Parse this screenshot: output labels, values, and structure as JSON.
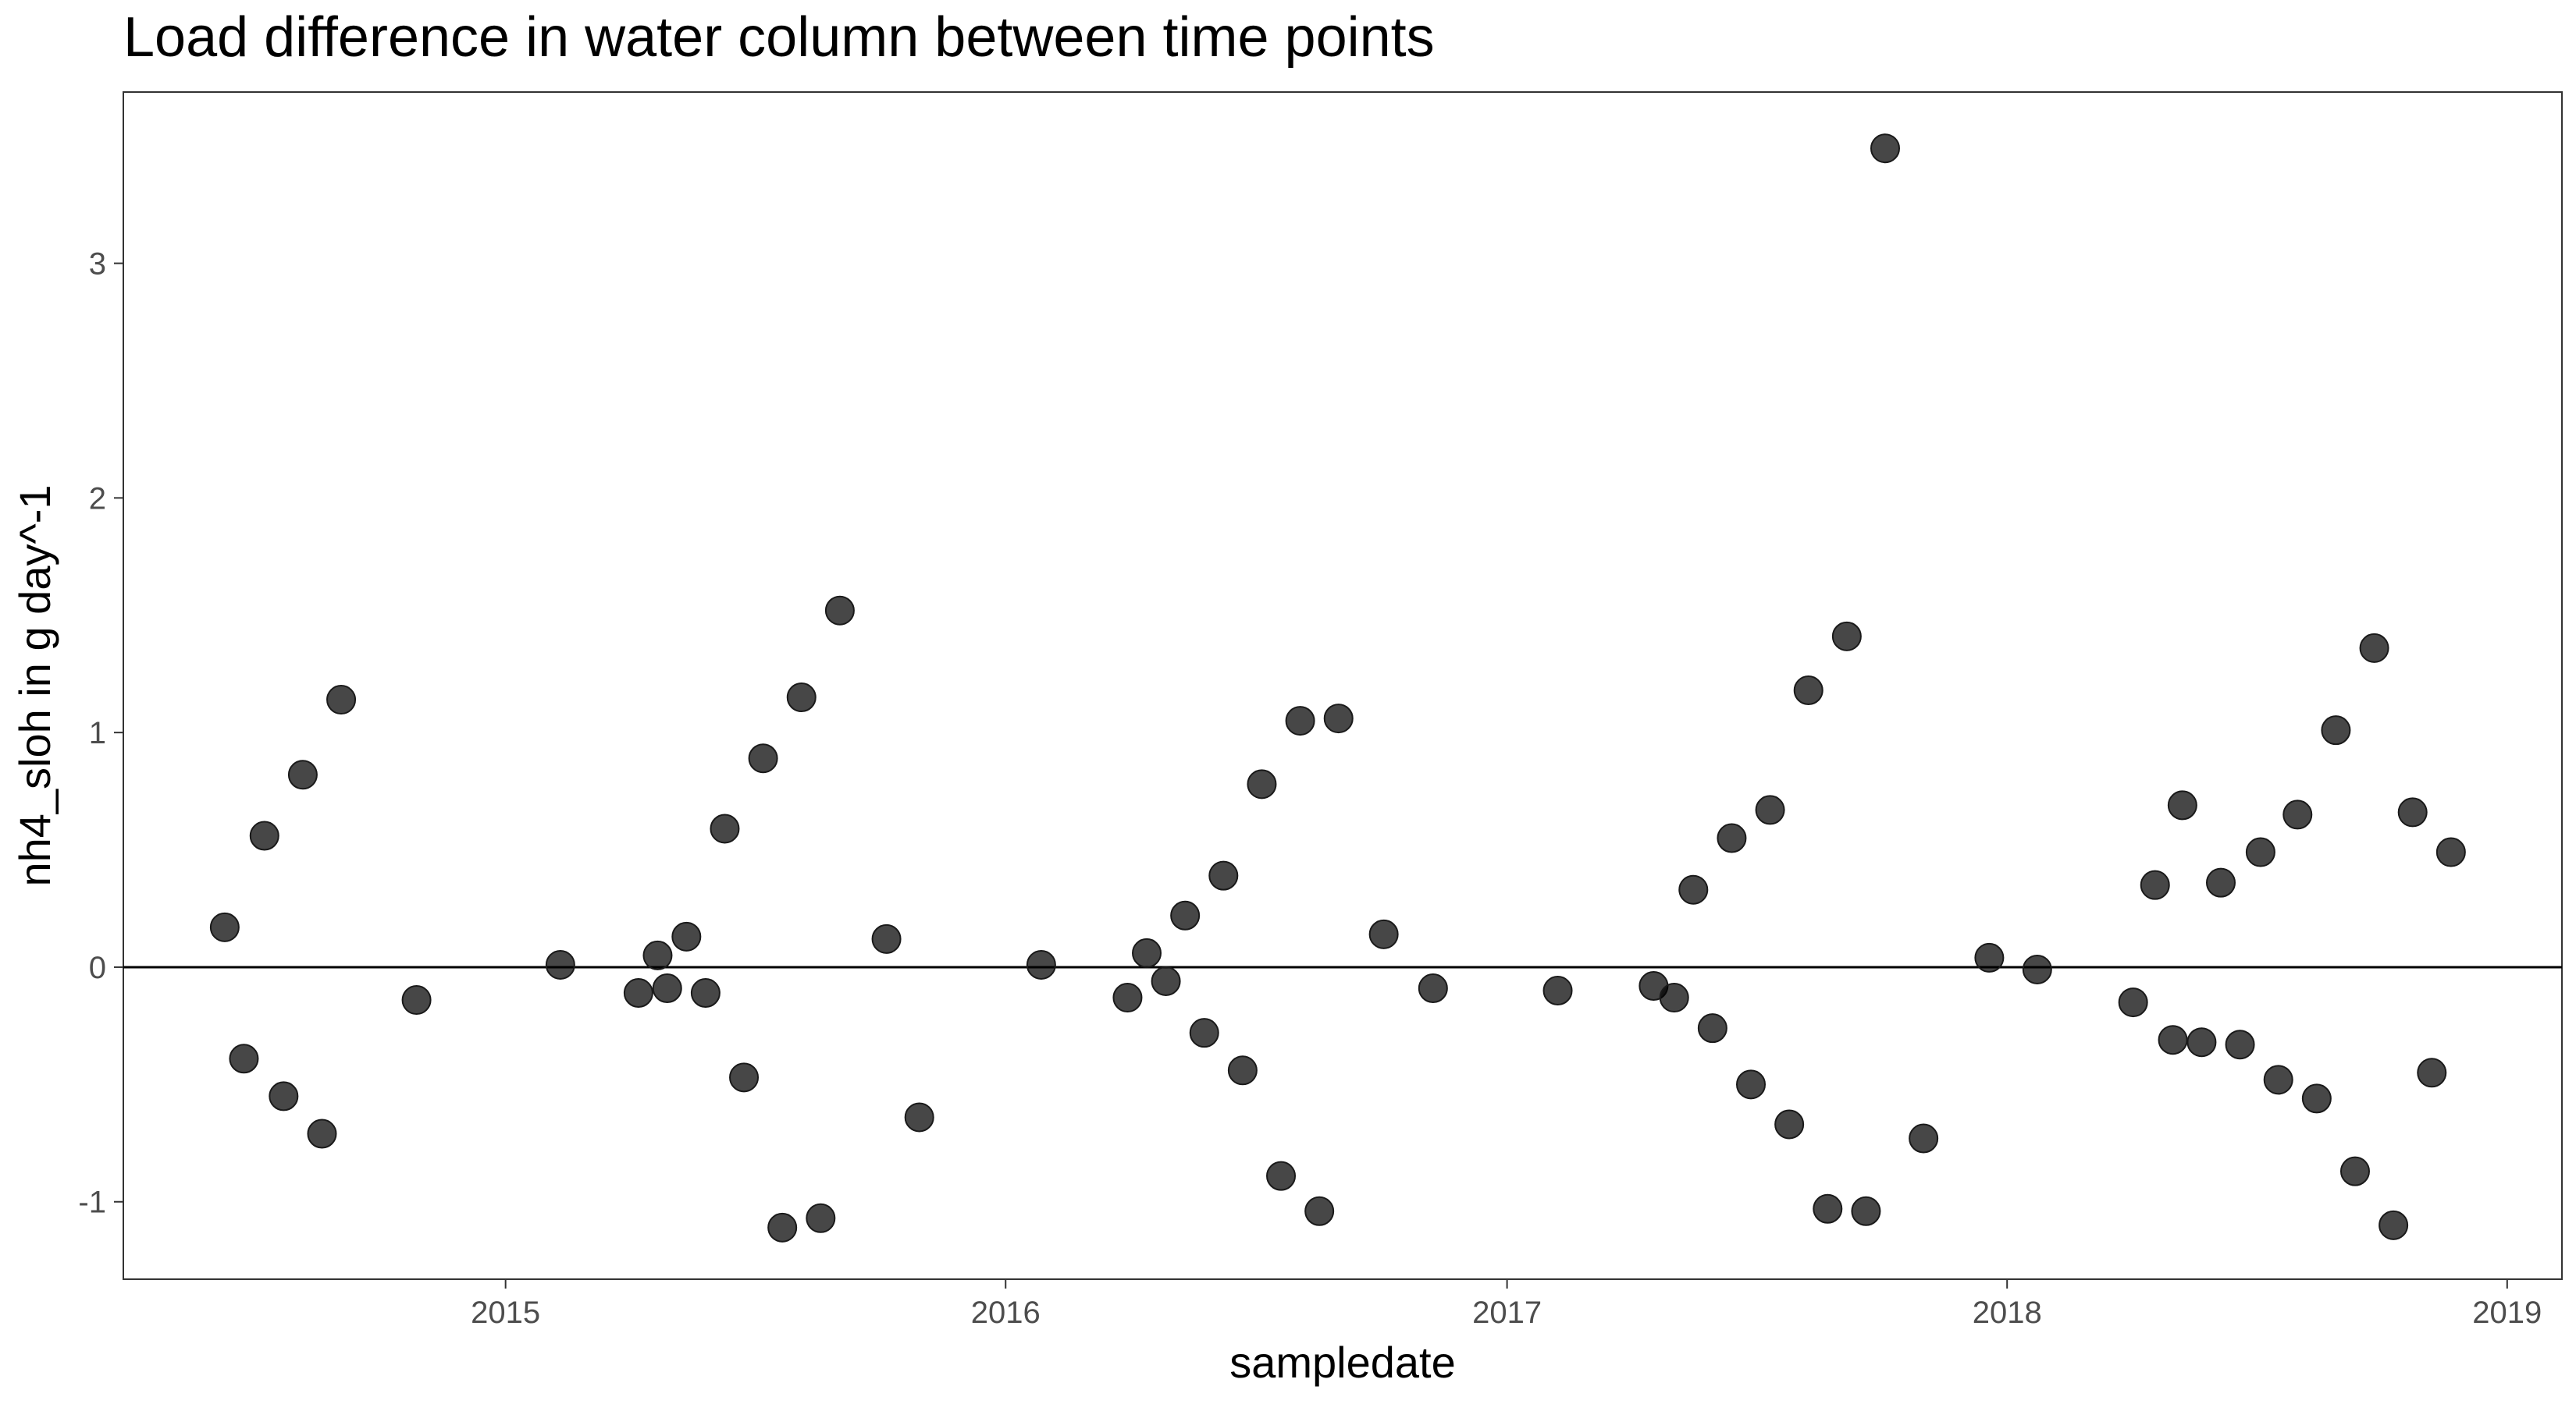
{
  "chart_data": {
    "type": "scatter",
    "title": "Load difference in water column between time points",
    "xlabel": "sampledate",
    "ylabel": "nh4_sloh in g day^-1",
    "x_type": "date",
    "xlim": [
      "2014-03-28",
      "2019-02-10"
    ],
    "ylim": [
      -1.33,
      3.73
    ],
    "x_ticks": [
      {
        "value": "2015-01-01",
        "label": "2015"
      },
      {
        "value": "2016-01-01",
        "label": "2016"
      },
      {
        "value": "2017-01-01",
        "label": "2017"
      },
      {
        "value": "2018-01-01",
        "label": "2018"
      },
      {
        "value": "2019-01-01",
        "label": "2019"
      }
    ],
    "y_ticks": [
      {
        "value": -1,
        "label": "-1"
      },
      {
        "value": 0,
        "label": "0"
      },
      {
        "value": 1,
        "label": "1"
      },
      {
        "value": 2,
        "label": "2"
      },
      {
        "value": 3,
        "label": "3"
      }
    ],
    "reference_line_y": 0,
    "grid": false,
    "point_color": "#000000",
    "point_opacity": 0.72,
    "points": [
      {
        "x": "2014-06-10",
        "y": 0.17
      },
      {
        "x": "2014-06-24",
        "y": -0.39
      },
      {
        "x": "2014-07-09",
        "y": 0.56
      },
      {
        "x": "2014-07-23",
        "y": -0.55
      },
      {
        "x": "2014-08-06",
        "y": 0.82
      },
      {
        "x": "2014-08-20",
        "y": -0.71
      },
      {
        "x": "2014-09-03",
        "y": 1.14
      },
      {
        "x": "2014-10-28",
        "y": -0.14
      },
      {
        "x": "2015-02-10",
        "y": 0.01
      },
      {
        "x": "2015-04-08",
        "y": -0.11
      },
      {
        "x": "2015-04-22",
        "y": 0.05
      },
      {
        "x": "2015-04-29",
        "y": -0.09
      },
      {
        "x": "2015-05-13",
        "y": 0.13
      },
      {
        "x": "2015-05-27",
        "y": -0.11
      },
      {
        "x": "2015-06-10",
        "y": 0.59
      },
      {
        "x": "2015-06-24",
        "y": -0.47
      },
      {
        "x": "2015-07-08",
        "y": 0.89
      },
      {
        "x": "2015-07-22",
        "y": -1.11
      },
      {
        "x": "2015-08-05",
        "y": 1.15
      },
      {
        "x": "2015-08-19",
        "y": -1.07
      },
      {
        "x": "2015-09-02",
        "y": 1.52
      },
      {
        "x": "2015-10-06",
        "y": 0.12
      },
      {
        "x": "2015-10-30",
        "y": -0.64
      },
      {
        "x": "2016-01-27",
        "y": 0.01
      },
      {
        "x": "2016-03-30",
        "y": -0.13
      },
      {
        "x": "2016-04-13",
        "y": 0.06
      },
      {
        "x": "2016-04-27",
        "y": -0.06
      },
      {
        "x": "2016-05-11",
        "y": 0.22
      },
      {
        "x": "2016-05-25",
        "y": -0.28
      },
      {
        "x": "2016-06-08",
        "y": 0.39
      },
      {
        "x": "2016-06-22",
        "y": -0.44
      },
      {
        "x": "2016-07-06",
        "y": 0.78
      },
      {
        "x": "2016-07-20",
        "y": -0.89
      },
      {
        "x": "2016-08-03",
        "y": 1.05
      },
      {
        "x": "2016-08-17",
        "y": -1.04
      },
      {
        "x": "2016-08-31",
        "y": 1.06
      },
      {
        "x": "2016-10-03",
        "y": 0.14
      },
      {
        "x": "2016-11-08",
        "y": -0.09
      },
      {
        "x": "2017-02-07",
        "y": -0.1
      },
      {
        "x": "2017-04-18",
        "y": -0.08
      },
      {
        "x": "2017-05-03",
        "y": -0.13
      },
      {
        "x": "2017-05-17",
        "y": 0.33
      },
      {
        "x": "2017-05-31",
        "y": -0.26
      },
      {
        "x": "2017-06-14",
        "y": 0.55
      },
      {
        "x": "2017-06-28",
        "y": -0.5
      },
      {
        "x": "2017-07-12",
        "y": 0.67
      },
      {
        "x": "2017-07-26",
        "y": -0.67
      },
      {
        "x": "2017-08-09",
        "y": 1.18
      },
      {
        "x": "2017-08-23",
        "y": -1.03
      },
      {
        "x": "2017-09-06",
        "y": 1.41
      },
      {
        "x": "2017-09-20",
        "y": -1.04
      },
      {
        "x": "2017-10-04",
        "y": 3.49
      },
      {
        "x": "2017-11-01",
        "y": -0.73
      },
      {
        "x": "2017-12-19",
        "y": 0.04
      },
      {
        "x": "2018-01-23",
        "y": -0.01
      },
      {
        "x": "2018-04-03",
        "y": -0.15
      },
      {
        "x": "2018-04-19",
        "y": 0.35
      },
      {
        "x": "2018-05-02",
        "y": -0.31
      },
      {
        "x": "2018-05-09",
        "y": 0.69
      },
      {
        "x": "2018-05-23",
        "y": -0.32
      },
      {
        "x": "2018-06-06",
        "y": 0.36
      },
      {
        "x": "2018-06-20",
        "y": -0.33
      },
      {
        "x": "2018-07-05",
        "y": 0.49
      },
      {
        "x": "2018-07-18",
        "y": -0.48
      },
      {
        "x": "2018-08-01",
        "y": 0.65
      },
      {
        "x": "2018-08-15",
        "y": -0.56
      },
      {
        "x": "2018-08-29",
        "y": 1.01
      },
      {
        "x": "2018-09-12",
        "y": -0.87
      },
      {
        "x": "2018-09-26",
        "y": 1.36
      },
      {
        "x": "2018-10-10",
        "y": -1.1
      },
      {
        "x": "2018-10-24",
        "y": 0.66
      },
      {
        "x": "2018-11-07",
        "y": -0.45
      },
      {
        "x": "2018-11-21",
        "y": 0.49
      }
    ]
  }
}
